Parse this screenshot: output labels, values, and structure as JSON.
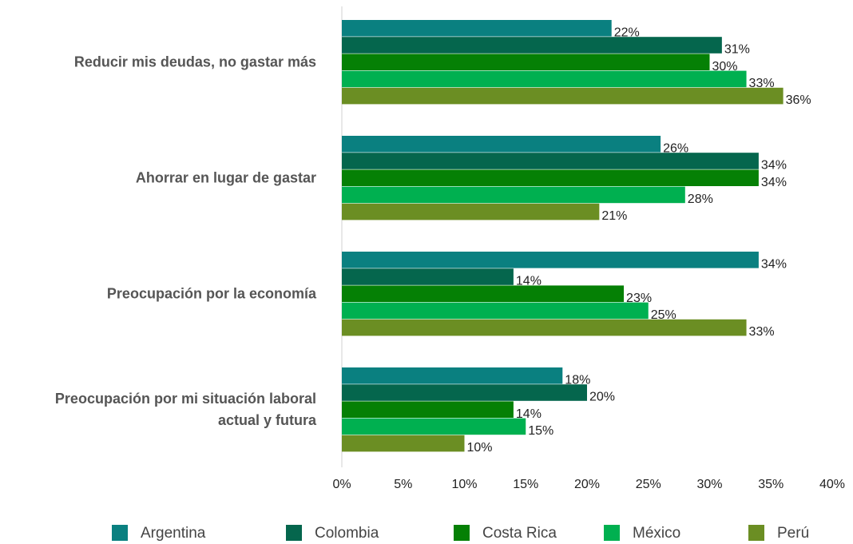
{
  "chart_data": {
    "type": "bar",
    "orientation": "horizontal",
    "categories": [
      "Reducir mis deudas, no gastar más",
      "Ahorrar en lugar de gastar",
      "Preocupación por la economía",
      "Preocupación por mi situación laboral actual y futura"
    ],
    "series": [
      {
        "name": "Argentina",
        "color": "#0a8080",
        "values": [
          22,
          26,
          34,
          18
        ],
        "value_labels": [
          "22%",
          "26%",
          "34%",
          "18%"
        ]
      },
      {
        "name": "Colombia",
        "color": "#05664d",
        "values": [
          31,
          34,
          14,
          20
        ],
        "value_labels": [
          "31%",
          "34%",
          "14%",
          "20%"
        ]
      },
      {
        "name": "Costa Rica",
        "color": "#058005",
        "values": [
          30,
          34,
          23,
          14
        ],
        "value_labels": [
          "30%",
          "34%",
          "23%",
          "14%"
        ]
      },
      {
        "name": "México",
        "color": "#00b050",
        "values": [
          33,
          28,
          25,
          15
        ],
        "value_labels": [
          "33%",
          "28%",
          "25%",
          "15%"
        ]
      },
      {
        "name": "Perú",
        "color": "#6b8e23",
        "values": [
          36,
          21,
          33,
          10
        ],
        "value_labels": [
          "36%",
          "21%",
          "33%",
          "10%"
        ]
      }
    ],
    "xlim": [
      0,
      40
    ],
    "xticks": [
      {
        "value": 0,
        "label": "0%"
      },
      {
        "value": 5,
        "label": "5%"
      },
      {
        "value": 10,
        "label": "10%"
      },
      {
        "value": 15,
        "label": "15%"
      },
      {
        "value": 20,
        "label": "20%"
      },
      {
        "value": 25,
        "label": "25%"
      },
      {
        "value": 30,
        "label": "30%"
      },
      {
        "value": 35,
        "label": "35%"
      },
      {
        "value": 40,
        "label": "40%"
      }
    ],
    "grid": false,
    "legend": "bottom"
  }
}
